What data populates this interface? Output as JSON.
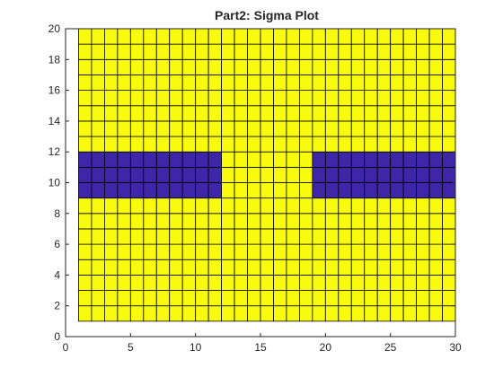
{
  "chart_data": {
    "type": "heatmap",
    "title": "Part2: Sigma Plot",
    "xlabel": "",
    "ylabel": "",
    "xlim": [
      0,
      30
    ],
    "ylim": [
      0,
      20
    ],
    "x_ticks": [
      0,
      5,
      10,
      15,
      20,
      25,
      30
    ],
    "y_ticks": [
      0,
      2,
      4,
      6,
      8,
      10,
      12,
      14,
      16,
      18,
      20
    ],
    "grid_x_range": [
      1,
      30
    ],
    "grid_y_range": [
      1,
      20
    ],
    "cell_size": 1,
    "background_value": "high",
    "low_regions": [
      {
        "x": [
          1,
          12
        ],
        "y": [
          9,
          12
        ]
      },
      {
        "x": [
          19,
          30
        ],
        "y": [
          9,
          12
        ]
      }
    ],
    "colors": {
      "high": "#f9fb0e",
      "low": "#3e26a8",
      "grid_line": "#000000",
      "axis": "#262626"
    }
  }
}
